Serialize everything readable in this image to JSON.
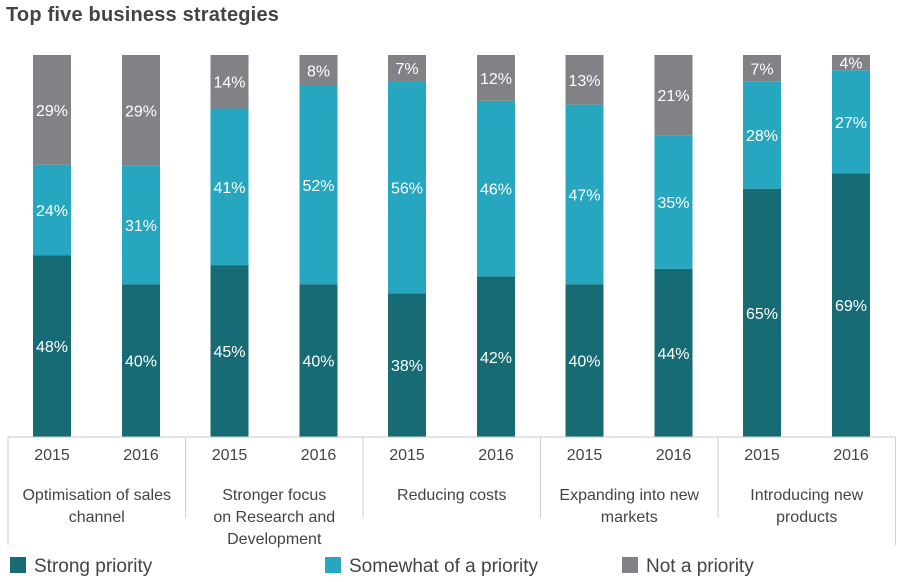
{
  "chart_data": {
    "type": "bar",
    "stacked": true,
    "title": "Top five business strategies",
    "groups": [
      {
        "label": "Optimisation of sales channel",
        "label_lines": [
          "Optimisation of sales",
          "channel"
        ],
        "years": [
          "2015",
          "2016"
        ]
      },
      {
        "label": "Stronger focus on Research and Development",
        "label_lines": [
          "Stronger focus",
          "on Research and",
          "Development"
        ],
        "years": [
          "2015",
          "2016"
        ]
      },
      {
        "label": "Reducing costs",
        "label_lines": [
          "Reducing costs"
        ],
        "years": [
          "2015",
          "2016"
        ]
      },
      {
        "label": "Expanding into new markets",
        "label_lines": [
          "Expanding into new",
          "markets"
        ],
        "years": [
          "2015",
          "2016"
        ]
      },
      {
        "label": "Introducing new products",
        "label_lines": [
          "Introducing new",
          "products"
        ],
        "years": [
          "2015",
          "2016"
        ]
      }
    ],
    "series": [
      {
        "name": "Strong priority",
        "color": "#176b74",
        "values": [
          48,
          40,
          45,
          40,
          38,
          42,
          40,
          44,
          65,
          69
        ]
      },
      {
        "name": "Somewhat of a priority",
        "color": "#26a7bf",
        "values": [
          24,
          31,
          41,
          52,
          56,
          46,
          47,
          35,
          28,
          27
        ]
      },
      {
        "name": "Not a priority",
        "color": "#808285",
        "values": [
          29,
          29,
          14,
          8,
          7,
          12,
          13,
          21,
          7,
          4
        ]
      }
    ],
    "value_suffix": "%",
    "legend_position": "bottom",
    "grid": false
  }
}
